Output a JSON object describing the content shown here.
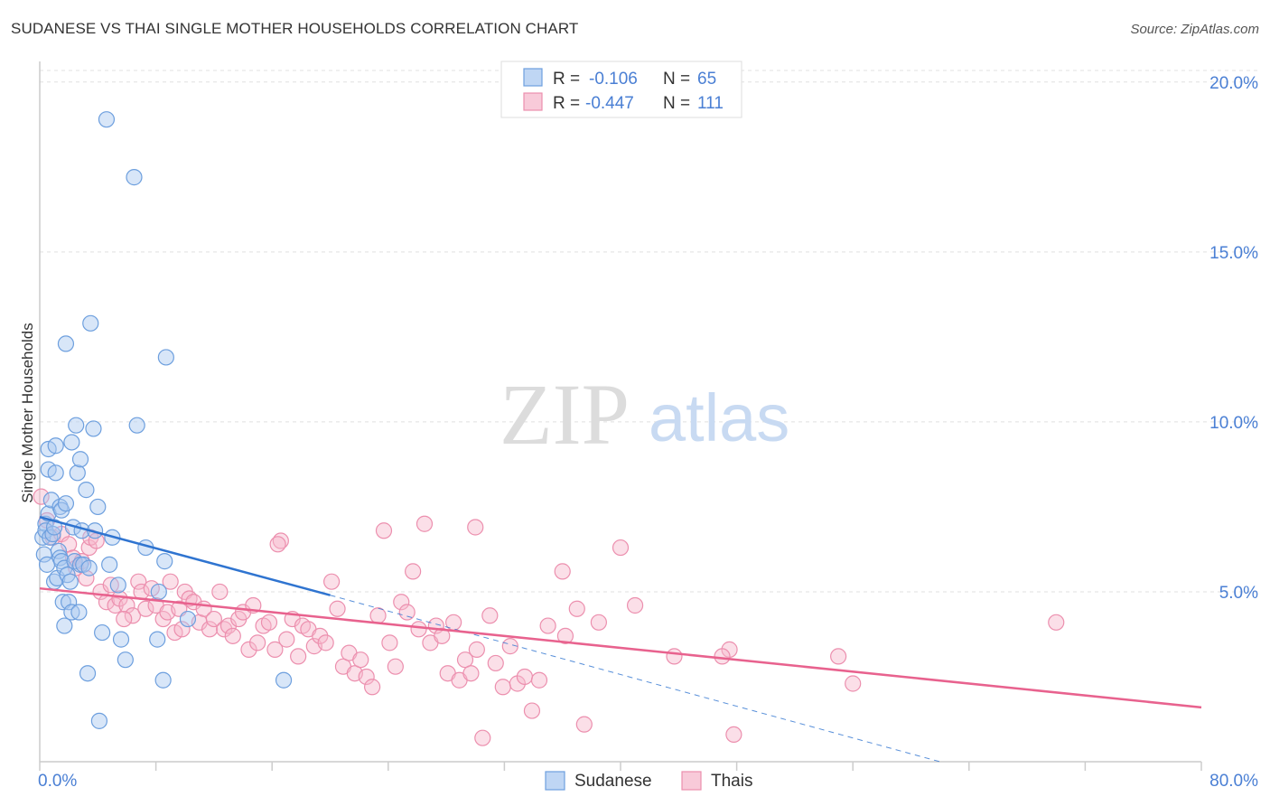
{
  "title": "SUDANESE VS THAI SINGLE MOTHER HOUSEHOLDS CORRELATION CHART",
  "source": "Source: ZipAtlas.com",
  "watermark": {
    "zip": "ZIP",
    "atlas": "atlas"
  },
  "colors": {
    "sudanese_fill": "#a9c8f0",
    "sudanese_stroke": "#6d9fde",
    "sudanese_line": "#2f74d0",
    "thai_fill": "#f6b8cc",
    "thai_stroke": "#ec8fae",
    "thai_line": "#e8628e",
    "tick_label": "#4a7fd4",
    "grid": "#e0e0e0",
    "axis": "#cccccc"
  },
  "legend": {
    "rows": [
      {
        "r_label": "R =",
        "r_value": "-0.106",
        "n_label": "N =",
        "n_value": "65"
      },
      {
        "r_label": "R =",
        "r_value": "-0.447",
        "n_label": "N =",
        "n_value": "111"
      }
    ],
    "bottom": [
      "Sudanese",
      "Thais"
    ]
  },
  "chart_data": {
    "type": "scatter",
    "title": "SUDANESE VS THAI SINGLE MOTHER HOUSEHOLDS CORRELATION CHART",
    "xlabel": "",
    "ylabel": "Single Mother Households",
    "xlim": [
      0,
      80
    ],
    "ylim": [
      0,
      20.5
    ],
    "x_tick_labels": [
      "0.0%",
      "80.0%"
    ],
    "y_ticks": [
      5,
      10,
      15,
      20
    ],
    "y_tick_labels": [
      "5.0%",
      "10.0%",
      "15.0%",
      "20.0%"
    ],
    "grid": true,
    "legend_position": "top-center",
    "series": [
      {
        "name": "Sudanese",
        "r": -0.106,
        "n": 65,
        "trend": {
          "x": [
            0,
            20
          ],
          "y": [
            7.2,
            4.9
          ],
          "dashed_extension_to": [
            62,
            0
          ]
        },
        "points": [
          [
            0.2,
            6.6
          ],
          [
            0.3,
            6.1
          ],
          [
            0.4,
            7.0
          ],
          [
            0.4,
            6.8
          ],
          [
            0.5,
            5.8
          ],
          [
            0.6,
            7.3
          ],
          [
            0.6,
            9.2
          ],
          [
            0.6,
            8.6
          ],
          [
            0.7,
            6.6
          ],
          [
            0.8,
            7.7
          ],
          [
            0.9,
            6.7
          ],
          [
            1.0,
            5.3
          ],
          [
            1.0,
            6.9
          ],
          [
            1.1,
            9.3
          ],
          [
            1.1,
            8.5
          ],
          [
            1.2,
            5.4
          ],
          [
            1.3,
            6.2
          ],
          [
            1.4,
            7.5
          ],
          [
            1.4,
            6.0
          ],
          [
            1.5,
            7.4
          ],
          [
            1.5,
            5.9
          ],
          [
            1.6,
            4.7
          ],
          [
            1.7,
            5.7
          ],
          [
            1.7,
            4.0
          ],
          [
            1.8,
            12.3
          ],
          [
            1.8,
            7.6
          ],
          [
            1.9,
            5.5
          ],
          [
            2.0,
            4.7
          ],
          [
            2.1,
            5.3
          ],
          [
            2.2,
            9.4
          ],
          [
            2.2,
            4.4
          ],
          [
            2.3,
            6.9
          ],
          [
            2.4,
            5.9
          ],
          [
            2.5,
            9.9
          ],
          [
            2.6,
            8.5
          ],
          [
            2.7,
            4.4
          ],
          [
            2.8,
            8.9
          ],
          [
            2.8,
            5.8
          ],
          [
            2.9,
            6.8
          ],
          [
            3.0,
            5.8
          ],
          [
            3.2,
            8.0
          ],
          [
            3.3,
            2.6
          ],
          [
            3.4,
            5.7
          ],
          [
            3.5,
            12.9
          ],
          [
            3.7,
            9.8
          ],
          [
            3.8,
            6.8
          ],
          [
            4.0,
            7.5
          ],
          [
            4.1,
            1.2
          ],
          [
            4.3,
            3.8
          ],
          [
            4.6,
            18.9
          ],
          [
            4.8,
            5.8
          ],
          [
            5.0,
            6.6
          ],
          [
            5.6,
            3.6
          ],
          [
            5.9,
            3.0
          ],
          [
            5.4,
            5.2
          ],
          [
            6.5,
            17.2
          ],
          [
            6.7,
            9.9
          ],
          [
            7.3,
            6.3
          ],
          [
            8.2,
            5.0
          ],
          [
            8.6,
            5.9
          ],
          [
            8.7,
            11.9
          ],
          [
            8.1,
            3.6
          ],
          [
            10.2,
            4.2
          ],
          [
            8.5,
            2.4
          ],
          [
            16.8,
            2.4
          ]
        ]
      },
      {
        "name": "Thais",
        "r": -0.447,
        "n": 111,
        "trend": {
          "x": [
            0,
            80
          ],
          "y": [
            5.1,
            1.6
          ]
        },
        "points": [
          [
            0.1,
            7.8
          ],
          [
            0.5,
            7.1
          ],
          [
            0.9,
            6.6
          ],
          [
            1.5,
            6.7
          ],
          [
            2.0,
            6.4
          ],
          [
            2.3,
            6.0
          ],
          [
            2.5,
            5.7
          ],
          [
            2.9,
            5.9
          ],
          [
            3.2,
            5.4
          ],
          [
            3.4,
            6.3
          ],
          [
            3.5,
            6.6
          ],
          [
            4.2,
            5.0
          ],
          [
            4.6,
            4.7
          ],
          [
            4.9,
            5.2
          ],
          [
            5.2,
            4.6
          ],
          [
            5.5,
            4.8
          ],
          [
            6.0,
            4.6
          ],
          [
            6.4,
            4.3
          ],
          [
            6.8,
            5.3
          ],
          [
            7.0,
            5.0
          ],
          [
            7.3,
            4.5
          ],
          [
            7.7,
            5.1
          ],
          [
            8.0,
            4.6
          ],
          [
            8.5,
            4.2
          ],
          [
            8.8,
            4.4
          ],
          [
            9.0,
            5.3
          ],
          [
            9.3,
            3.8
          ],
          [
            9.6,
            4.5
          ],
          [
            10.0,
            5.0
          ],
          [
            10.3,
            4.8
          ],
          [
            10.6,
            4.7
          ],
          [
            11.0,
            4.1
          ],
          [
            11.3,
            4.5
          ],
          [
            11.7,
            3.9
          ],
          [
            12.0,
            4.2
          ],
          [
            12.4,
            5.0
          ],
          [
            12.7,
            3.9
          ],
          [
            13.0,
            4.0
          ],
          [
            13.3,
            3.7
          ],
          [
            13.7,
            4.2
          ],
          [
            14.0,
            4.4
          ],
          [
            14.4,
            3.3
          ],
          [
            14.7,
            4.6
          ],
          [
            15.0,
            3.5
          ],
          [
            15.4,
            4.0
          ],
          [
            15.8,
            4.1
          ],
          [
            16.2,
            3.3
          ],
          [
            16.6,
            6.5
          ],
          [
            17.0,
            3.6
          ],
          [
            17.4,
            4.2
          ],
          [
            17.8,
            3.1
          ],
          [
            18.1,
            4.0
          ],
          [
            18.5,
            3.9
          ],
          [
            18.9,
            3.4
          ],
          [
            19.3,
            3.7
          ],
          [
            19.7,
            3.5
          ],
          [
            20.1,
            5.3
          ],
          [
            20.5,
            4.5
          ],
          [
            20.9,
            2.8
          ],
          [
            21.3,
            3.2
          ],
          [
            21.7,
            2.6
          ],
          [
            22.1,
            3.0
          ],
          [
            22.5,
            2.5
          ],
          [
            22.9,
            2.2
          ],
          [
            23.3,
            4.3
          ],
          [
            23.7,
            6.8
          ],
          [
            24.1,
            3.5
          ],
          [
            24.5,
            2.8
          ],
          [
            24.9,
            4.7
          ],
          [
            25.3,
            4.4
          ],
          [
            25.7,
            5.6
          ],
          [
            26.1,
            3.9
          ],
          [
            26.5,
            7.0
          ],
          [
            26.9,
            3.5
          ],
          [
            27.3,
            4.0
          ],
          [
            27.7,
            3.7
          ],
          [
            28.1,
            2.6
          ],
          [
            28.5,
            4.1
          ],
          [
            28.9,
            2.4
          ],
          [
            29.3,
            3.0
          ],
          [
            29.7,
            2.6
          ],
          [
            30.1,
            3.3
          ],
          [
            30.5,
            0.7
          ],
          [
            31.0,
            4.3
          ],
          [
            31.4,
            2.9
          ],
          [
            31.9,
            2.2
          ],
          [
            32.4,
            3.4
          ],
          [
            32.9,
            2.3
          ],
          [
            33.4,
            2.5
          ],
          [
            33.9,
            1.5
          ],
          [
            34.4,
            2.4
          ],
          [
            35.0,
            4.0
          ],
          [
            36.0,
            5.6
          ],
          [
            37.5,
            1.1
          ],
          [
            38.5,
            4.1
          ],
          [
            40.0,
            6.3
          ],
          [
            41.0,
            4.6
          ],
          [
            43.7,
            3.1
          ],
          [
            47.5,
            3.3
          ],
          [
            47.8,
            0.8
          ],
          [
            36.2,
            3.7
          ],
          [
            30.0,
            6.9
          ],
          [
            37.0,
            4.5
          ],
          [
            47.0,
            3.1
          ],
          [
            55.0,
            3.1
          ],
          [
            56.0,
            2.3
          ],
          [
            70.0,
            4.1
          ],
          [
            16.4,
            6.4
          ],
          [
            5.8,
            4.2
          ],
          [
            9.8,
            3.9
          ],
          [
            3.9,
            6.5
          ]
        ]
      }
    ]
  }
}
